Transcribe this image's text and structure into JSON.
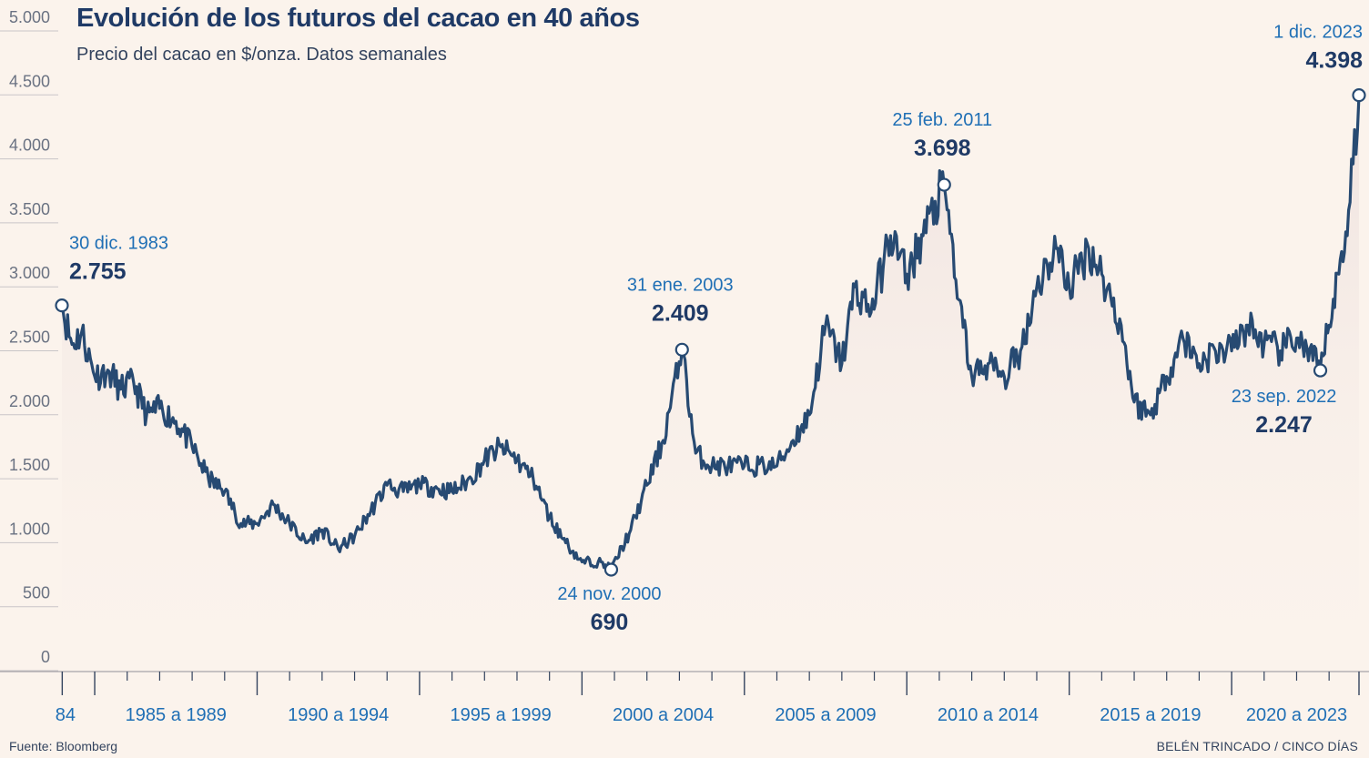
{
  "title": "Evolución de los futuros del cacao en 40 años",
  "subtitle": "Precio del cacao en $/onza. Datos semanales",
  "source": "Fuente: Bloomberg",
  "credit": "BELÉN TRINCADO / CINCO DÍAS",
  "colors": {
    "background": "#fbf3ec",
    "line": "#274a72",
    "area": "#efe3e0",
    "accent": "#1f6fb5",
    "text_dark": "#1f3a66"
  },
  "chart_data": {
    "type": "line",
    "title": "Evolución de los futuros del cacao en 40 años",
    "subtitle": "Precio del cacao en $/onza. Datos semanales",
    "ylabel": "",
    "xlabel": "",
    "ylim": [
      0,
      5000
    ],
    "yticks": [
      0,
      500,
      1000,
      1500,
      2000,
      2500,
      3000,
      3500,
      4000,
      4500,
      5000
    ],
    "ytick_labels": [
      "0",
      "500",
      "1.000",
      "1.500",
      "2.000",
      "2.500",
      "3.000",
      "3.500",
      "4.000",
      "4.500",
      "5.000"
    ],
    "x_range": [
      1983.99,
      2023.92
    ],
    "x_ticks": [
      1984,
      1985,
      1990,
      1995,
      2000,
      2005,
      2010,
      2015,
      2020,
      2023.92
    ],
    "x_periods": [
      {
        "label": "84",
        "center": 1984.1
      },
      {
        "label": "1985 a 1989",
        "center": 1987.5
      },
      {
        "label": "1990 a 1994",
        "center": 1992.5
      },
      {
        "label": "1995 a 1999",
        "center": 1997.5
      },
      {
        "label": "2000 a 2004",
        "center": 2002.5
      },
      {
        "label": "2005 a 2009",
        "center": 2007.5
      },
      {
        "label": "2010 a 2014",
        "center": 2012.5
      },
      {
        "label": "2015 a 2019",
        "center": 2017.5
      },
      {
        "label": "2020 a 2023",
        "center": 2022.0
      }
    ],
    "grid": true,
    "series": [
      {
        "x": [
          1983.99,
          1984.3,
          1984.6,
          1985.0,
          1985.4,
          1985.8,
          1986.2,
          1986.6,
          1987.0,
          1987.5,
          1988.0,
          1988.5,
          1989.0,
          1989.5,
          1990.0,
          1990.5,
          1991.0,
          1991.5,
          1992.0,
          1992.5,
          1993.0,
          1993.5,
          1994.0,
          1994.5,
          1995.0,
          1996.0,
          1996.6,
          1997.0,
          1997.5,
          1998.0,
          1998.5,
          1999.0,
          1999.5,
          2000.0,
          2000.5,
          2000.9,
          2001.5,
          2002.0,
          2002.5,
          2003.08,
          2003.5,
          2004.0,
          2005.0,
          2006.0,
          2006.5,
          2007.0,
          2007.5,
          2008.0,
          2008.4,
          2008.9,
          2009.5,
          2010.0,
          2010.5,
          2011.15,
          2011.6,
          2012.0,
          2012.5,
          2013.0,
          2013.5,
          2014.0,
          2014.6,
          2015.0,
          2015.6,
          2016.0,
          2016.6,
          2017.0,
          2017.5,
          2018.0,
          2018.5,
          2019.0,
          2019.5,
          2020.0,
          2020.5,
          2021.0,
          2021.5,
          2022.0,
          2022.73,
          2023.0,
          2023.3,
          2023.6,
          2023.92
        ],
        "y": [
          2755,
          2450,
          2550,
          2200,
          2250,
          2100,
          2150,
          1900,
          1950,
          1850,
          1650,
          1400,
          1300,
          1050,
          1050,
          1200,
          1050,
          900,
          1000,
          850,
          950,
          1150,
          1350,
          1300,
          1350,
          1300,
          1400,
          1550,
          1650,
          1550,
          1400,
          1100,
          900,
          750,
          750,
          690,
          1000,
          1350,
          1700,
          2409,
          1600,
          1500,
          1500,
          1500,
          1700,
          1900,
          2600,
          2300,
          2900,
          2700,
          3300,
          3000,
          3300,
          3698,
          2800,
          2200,
          2300,
          2200,
          2400,
          2900,
          3200,
          2900,
          3200,
          3000,
          2600,
          2000,
          1900,
          2200,
          2500,
          2300,
          2400,
          2400,
          2600,
          2450,
          2400,
          2500,
          2247,
          2600,
          3000,
          3500,
          4398
        ]
      }
    ],
    "annotations": [
      {
        "date": "30 dic. 1983",
        "value": "2.755",
        "x": 1983.99,
        "y": 2755
      },
      {
        "date": "24 nov. 2000",
        "value": "690",
        "x": 2000.9,
        "y": 690
      },
      {
        "date": "31 ene. 2003",
        "value": "2.409",
        "x": 2003.08,
        "y": 2409
      },
      {
        "date": "25 feb. 2011",
        "value": "3.698",
        "x": 2011.15,
        "y": 3698
      },
      {
        "date": "23 sep. 2022",
        "value": "2.247",
        "x": 2022.73,
        "y": 2247
      },
      {
        "date": "1 dic. 2023",
        "value": "4.398",
        "x": 2023.92,
        "y": 4398
      }
    ]
  }
}
